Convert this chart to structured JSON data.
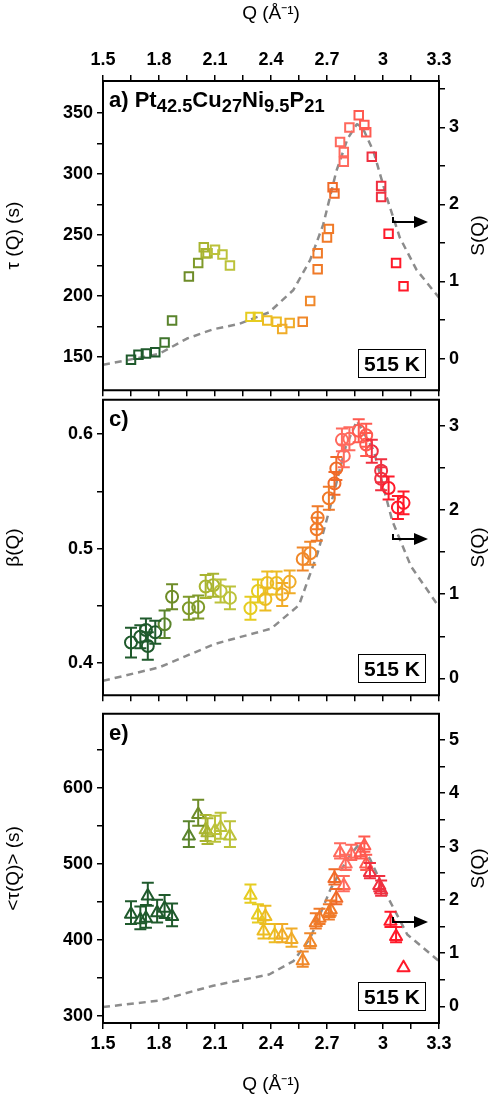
{
  "chart_data": [
    {
      "type": "scatter",
      "annotations": [
        "a) Pt$_{42.5}$Cu$_{27}$Ni$_{9.5}$P$_{21}$",
        "515 K"
      ],
      "ylabel": "τ (Q) (s)",
      "y2label": "S(Q)",
      "x2label": "Q (Å⁻¹)",
      "tick_labels": "y",
      "xlim": [
        1.5,
        3.3
      ],
      "xticks": [
        1.5,
        {
          "value": 1.65,
          "label": null
        },
        1.8,
        {
          "value": 1.95,
          "label": null
        },
        2.1,
        {
          "value": 2.25,
          "label": null
        },
        2.4,
        {
          "value": 2.55,
          "label": null
        },
        2.7,
        {
          "value": 2.85,
          "label": null
        },
        3,
        {
          "value": 3.15,
          "label": null
        },
        3.3
      ],
      "x2lim": [
        1.5,
        3.3
      ],
      "x2ticks": [
        1.5,
        {
          "value": 1.65,
          "label": null
        },
        1.8,
        {
          "value": 1.95,
          "label": null
        },
        2.1,
        {
          "value": 2.25,
          "label": null
        },
        2.4,
        {
          "value": 2.55,
          "label": null
        },
        2.7,
        {
          "value": 2.85,
          "label": null
        },
        3,
        {
          "value": 3.15,
          "label": null
        },
        3.3
      ],
      "ylim": [
        123,
        376
      ],
      "yticks": [
        150,
        {
          "value": 175,
          "label": null
        },
        200,
        {
          "value": 225,
          "label": null
        },
        250,
        {
          "value": 275,
          "label": null
        },
        300,
        {
          "value": 325,
          "label": null
        },
        350
      ],
      "y2lim": [
        -0.41,
        3.6
      ],
      "y2ticks": [
        0,
        {
          "value": 0.5,
          "label": null
        },
        1,
        {
          "value": 1.5,
          "label": null
        },
        2,
        {
          "value": 2.5,
          "label": null
        },
        3,
        {
          "value": 3.5,
          "label": null
        }
      ],
      "series": [
        {
          "type": "scatter",
          "marker": "square",
          "x": [
            1.65,
            1.69,
            1.73,
            1.78,
            1.83,
            1.87,
            1.96,
            2.01,
            2.05,
            2.04,
            2.06,
            2.1,
            2.14,
            2.18,
            2.29,
            2.33,
            2.38,
            2.43,
            2.46,
            2.5,
            2.57,
            2.61,
            2.65,
            2.65,
            2.7,
            2.71,
            2.74,
            2.73,
            2.79,
            2.79,
            2.77,
            2.82,
            2.87,
            2.9,
            2.91,
            2.94,
            2.99,
            2.99,
            3.03,
            3.07,
            3.11
          ],
          "values": [
            148,
            152,
            153,
            154,
            162,
            180,
            216,
            227,
            235,
            240,
            235,
            238,
            234,
            225,
            183,
            183,
            180,
            179,
            173,
            178,
            179,
            196,
            222,
            235,
            248,
            255,
            284,
            289,
            310,
            318,
            326,
            338,
            348,
            340,
            334,
            314,
            290,
            281,
            251,
            227,
            208
          ],
          "colors": [
            "#1f5a2c",
            "#1f5a2c",
            "#1f5a2c",
            "#1f5a2c",
            "#3f742c",
            "#5a842c",
            "#6e8c28",
            "#7f9a2a",
            "#a8b430",
            "#a8b430",
            "#a8b430",
            "#bcc23a",
            "#bcc23a",
            "#bcc23a",
            "#e6cc20",
            "#e6cc20",
            "#ecbc22",
            "#ecbc22",
            "#f0ac28",
            "#f0ac28",
            "#f0882a",
            "#f0882a",
            "#f07a28",
            "#f07a28",
            "#f07a28",
            "#f07a28",
            "#f06a28",
            "#f06a28",
            "#ff6a5e",
            "#ff6a5e",
            "#ff6a5e",
            "#ff6a5e",
            "#ff5a50",
            "#ff5a50",
            "#ff5a50",
            "#f03040",
            "#f03040",
            "#f03040",
            "#ff1a2a",
            "#ff1a2a",
            "#ff1a2a"
          ]
        },
        {
          "type": "line",
          "axis": "y2",
          "color": "#8c8c8c",
          "line_style": "dashed",
          "marker": "none",
          "x": [
            1.5,
            1.8,
            1.95,
            2.09,
            2.23,
            2.39,
            2.52,
            2.61,
            2.68,
            2.75,
            2.81,
            2.86,
            2.89,
            2.95,
            3.02,
            3.09,
            3.18,
            3.3
          ],
          "values": [
            -0.08,
            0.06,
            0.26,
            0.38,
            0.45,
            0.6,
            0.89,
            1.28,
            1.74,
            2.43,
            2.85,
            3.04,
            3.0,
            2.68,
            2.09,
            1.57,
            1.15,
            0.79
          ]
        }
      ]
    },
    {
      "type": "scatter",
      "annotations": [
        "c)",
        "515 K"
      ],
      "ylabel": "β(Q)",
      "y2label": "S(Q)",
      "tick_labels": "y",
      "xlim": [
        1.5,
        3.3
      ],
      "xticks": [
        1.5,
        {
          "value": 1.65,
          "label": null
        },
        1.8,
        {
          "value": 1.95,
          "label": null
        },
        2.1,
        {
          "value": 2.25,
          "label": null
        },
        2.4,
        {
          "value": 2.55,
          "label": null
        },
        2.7,
        {
          "value": 2.85,
          "label": null
        },
        3,
        {
          "value": 3.15,
          "label": null
        },
        3.3
      ],
      "ylim": [
        0.372,
        0.63
      ],
      "yticks": [
        0.4,
        {
          "value": 0.45,
          "label": null
        },
        0.5,
        {
          "value": 0.55,
          "label": null
        },
        0.6
      ],
      "y2lim": [
        -0.2,
        3.31
      ],
      "y2ticks": [
        0,
        {
          "value": 0.5,
          "label": null
        },
        1,
        {
          "value": 1.5,
          "label": null
        },
        2,
        {
          "value": 2.5,
          "label": null
        },
        3
      ],
      "series": [
        {
          "type": "scatter",
          "marker": "circle",
          "x": [
            1.65,
            1.7,
            1.74,
            1.73,
            1.78,
            1.83,
            1.87,
            1.96,
            2.01,
            2.05,
            2.09,
            2.13,
            2.18,
            2.29,
            2.33,
            2.37,
            2.38,
            2.43,
            2.46,
            2.5,
            2.57,
            2.61,
            2.645,
            2.65,
            2.71,
            2.74,
            2.75,
            2.79,
            2.78,
            2.82,
            2.87,
            2.91,
            2.91,
            2.94,
            2.99,
            2.99,
            3.03,
            3.08,
            3.11
          ],
          "values": [
            0.418,
            0.423,
            0.415,
            0.429,
            0.427,
            0.434,
            0.458,
            0.448,
            0.449,
            0.467,
            0.468,
            0.463,
            0.457,
            0.448,
            0.463,
            0.456,
            0.47,
            0.47,
            0.46,
            0.471,
            0.491,
            0.496,
            0.517,
            0.527,
            0.544,
            0.557,
            0.57,
            0.581,
            0.595,
            0.596,
            0.603,
            0.599,
            0.591,
            0.585,
            0.568,
            0.561,
            0.553,
            0.536,
            0.54
          ],
          "errors": [
            0.013,
            0.01,
            0.012,
            0.01,
            0.01,
            0.012,
            0.011,
            0.01,
            0.01,
            0.01,
            0.01,
            0.01,
            0.01,
            0.01,
            0.01,
            0.01,
            0.01,
            0.01,
            0.01,
            0.01,
            0.01,
            0.01,
            0.01,
            0.01,
            0.01,
            0.01,
            0.01,
            0.01,
            0.01,
            0.01,
            0.01,
            0.01,
            0.01,
            0.01,
            0.01,
            0.01,
            0.01,
            0.01,
            0.01
          ],
          "colors": [
            "#1f5a2c",
            "#1f5a2c",
            "#1f5a2c",
            "#1f5a2c",
            "#1f5a2c",
            "#5a842c",
            "#6e8c28",
            "#7f9a2a",
            "#7f9a2a",
            "#a8b430",
            "#a8b430",
            "#bcc23a",
            "#bcc23a",
            "#e6cc20",
            "#e6cc20",
            "#ecbc22",
            "#ecbc22",
            "#ecbc22",
            "#f0ac28",
            "#f0ac28",
            "#f0882a",
            "#f0882a",
            "#f07a28",
            "#f07a28",
            "#f07a28",
            "#f06a28",
            "#f06a28",
            "#ff6a5e",
            "#ff6a5e",
            "#ff6a5e",
            "#ff5a50",
            "#ff5a50",
            "#ff5a50",
            "#f03040",
            "#f03040",
            "#f03040",
            "#ff1a2a",
            "#ff1a2a",
            "#ff1a2a"
          ]
        },
        {
          "type": "line",
          "axis": "y2",
          "color": "#8c8c8c",
          "line_style": "dashed",
          "marker": "none",
          "x": [
            1.5,
            1.8,
            2.1,
            2.4,
            2.55,
            2.65,
            2.72,
            2.8,
            2.86,
            2.95,
            3.05,
            3.15,
            3.3
          ],
          "values": [
            -0.03,
            0.13,
            0.41,
            0.59,
            0.87,
            1.49,
            2.06,
            2.75,
            3.06,
            2.71,
            1.87,
            1.33,
            0.85
          ]
        }
      ]
    },
    {
      "type": "scatter",
      "annotations": [
        "e)",
        "515 K"
      ],
      "ylabel": "<τ(Q)> (s)",
      "y2label": "S(Q)",
      "xlabel": "Q (Å⁻¹)",
      "xlim": [
        1.5,
        3.3
      ],
      "xticks": [
        1.5,
        {
          "value": 1.65,
          "label": null
        },
        1.8,
        {
          "value": 1.95,
          "label": null
        },
        2.1,
        {
          "value": 2.25,
          "label": null
        },
        2.4,
        {
          "value": 2.55,
          "label": null
        },
        2.7,
        {
          "value": 2.85,
          "label": null
        },
        3,
        {
          "value": 3.15,
          "label": null
        },
        3.3
      ],
      "ylim": [
        291,
        697
      ],
      "yticks": [
        300,
        {
          "value": 350,
          "label": null
        },
        400,
        {
          "value": 450,
          "label": null
        },
        500,
        {
          "value": 550,
          "label": null
        },
        600,
        {
          "value": 650,
          "label": null
        }
      ],
      "y2lim": [
        -0.31,
        5.49
      ],
      "y2ticks": [
        0,
        {
          "value": 0.5,
          "label": null
        },
        1,
        {
          "value": 1.5,
          "label": null
        },
        2,
        {
          "value": 2.5,
          "label": null
        },
        3,
        {
          "value": 3.5,
          "label": null
        },
        4,
        {
          "value": 4.5,
          "label": null
        },
        5
      ],
      "series": [
        {
          "type": "scatter",
          "marker": "triangle",
          "x": [
            1.65,
            1.7,
            1.74,
            1.73,
            1.79,
            1.83,
            1.87,
            1.96,
            2.01,
            2.05,
            2.06,
            2.1,
            2.13,
            2.18,
            2.29,
            2.33,
            2.37,
            2.36,
            2.42,
            2.46,
            2.51,
            2.57,
            2.61,
            2.64,
            2.66,
            2.71,
            2.72,
            2.74,
            2.75,
            2.79,
            2.77,
            2.8,
            2.83,
            2.88,
            2.9,
            2.91,
            2.93,
            2.98,
            2.99,
            3.04,
            3.07,
            3.11
          ],
          "values": [
            436,
            429,
            460,
            431,
            438,
            444,
            433,
            539,
            567,
            547,
            543,
            546,
            550,
            539,
            461,
            435,
            433,
            414,
            409,
            409,
            403,
            375,
            399,
            425,
            431,
            437,
            442,
            483,
            457,
            474,
            517,
            502,
            515,
            517,
            526,
            502,
            491,
            474,
            468,
            427,
            407,
            366
          ],
          "errors": [
            15,
            15,
            15,
            15,
            15,
            15,
            15,
            17,
            17,
            17,
            17,
            17,
            17,
            17,
            12,
            12,
            12,
            12,
            12,
            12,
            12,
            10,
            10,
            10,
            10,
            10,
            10,
            10,
            10,
            10,
            10,
            10,
            10,
            10,
            10,
            10,
            10,
            10,
            10,
            10,
            10,
            null
          ],
          "colors": [
            "#1f5a2c",
            "#1f5a2c",
            "#1f5a2c",
            "#1f5a2c",
            "#1f5a2c",
            "#1f5a2c",
            "#1f5a2c",
            "#5a842c",
            "#6e8c28",
            "#a8b430",
            "#a8b430",
            "#bcc23a",
            "#bcc23a",
            "#bcc23a",
            "#e6cc20",
            "#e6cc20",
            "#ecbc22",
            "#ecbc22",
            "#ecbc22",
            "#f0ac28",
            "#f0ac28",
            "#f0882a",
            "#f0882a",
            "#f07a28",
            "#f07a28",
            "#f07a28",
            "#f07a28",
            "#f06a28",
            "#f06a28",
            "#ff6a5e",
            "#ff6a5e",
            "#ff6a5e",
            "#ff6a5e",
            "#ff5a50",
            "#ff5a50",
            "#ff5a50",
            "#f03040",
            "#f03040",
            "#f03040",
            "#ff1a2a",
            "#ff1a2a",
            "#ff1a2a"
          ]
        },
        {
          "type": "line",
          "axis": "y2",
          "color": "#8c8c8c",
          "line_style": "dashed",
          "marker": "none",
          "x": [
            1.5,
            1.8,
            2.09,
            2.39,
            2.52,
            2.61,
            2.72,
            2.81,
            2.87,
            2.93,
            3.02,
            3.13,
            3.3
          ],
          "values": [
            -0.01,
            0.11,
            0.39,
            0.6,
            0.85,
            1.28,
            2.21,
            2.77,
            3.04,
            2.77,
            2.09,
            1.35,
            0.85
          ]
        }
      ]
    }
  ]
}
